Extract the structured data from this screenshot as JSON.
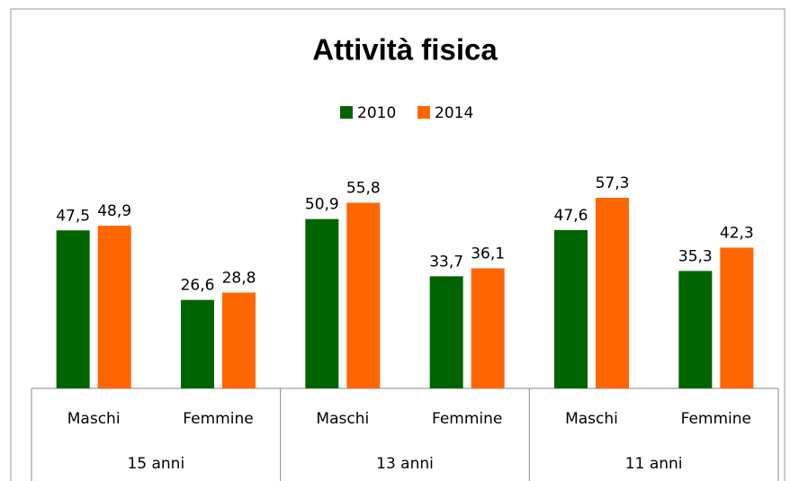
{
  "chart_data": {
    "type": "bar",
    "title": "Attività fisica",
    "categories": [
      "Maschi",
      "Femmine",
      "Maschi",
      "Femmine",
      "Maschi",
      "Femmine"
    ],
    "groups": [
      "15 anni",
      "13 anni",
      "11 anni"
    ],
    "series": [
      {
        "name": "2010",
        "color": "#006400",
        "values": [
          47.5,
          26.6,
          50.9,
          33.7,
          47.6,
          35.3
        ],
        "value_labels": [
          "47,5",
          "26,6",
          "50,9",
          "33,7",
          "47,6",
          "35,3"
        ]
      },
      {
        "name": "2014",
        "color": "#ff6600",
        "values": [
          48.9,
          28.8,
          55.8,
          36.1,
          57.3,
          42.3
        ],
        "value_labels": [
          "48,9",
          "28,8",
          "55,8",
          "36,1",
          "57,3",
          "42,3"
        ]
      }
    ],
    "ylim": [
      0,
      60
    ],
    "legend": "top"
  }
}
